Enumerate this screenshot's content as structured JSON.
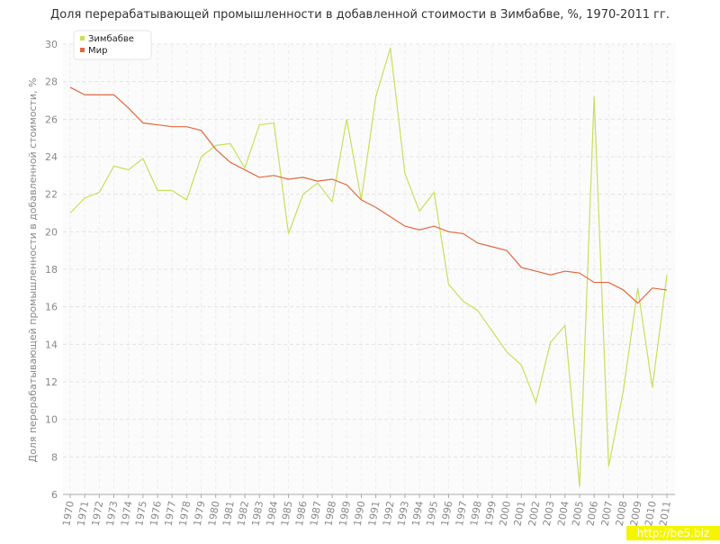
{
  "chart_data": {
    "type": "line",
    "title": "Доля перерабатывающей промышленности в добавленной стоимости в Зимбабве, %, 1970-2011 гг.",
    "y_label": "Доля перерабатывающей промышленности в добавленной стоимости, %",
    "watermark": "http://be5.biz",
    "categories": [
      "1970",
      "1971",
      "1972",
      "1973",
      "1974",
      "1975",
      "1976",
      "1977",
      "1978",
      "1979",
      "1980",
      "1981",
      "1982",
      "1983",
      "1984",
      "1985",
      "1986",
      "1987",
      "1988",
      "1989",
      "1990",
      "1991",
      "1992",
      "1993",
      "1994",
      "1995",
      "1996",
      "1997",
      "1998",
      "1999",
      "2000",
      "2001",
      "2002",
      "2003",
      "2004",
      "2005",
      "2006",
      "2007",
      "2008",
      "2009",
      "2010",
      "2011"
    ],
    "series": [
      {
        "name": "Зимбабве",
        "color": "#c6e05c",
        "values": [
          21.0,
          21.8,
          22.1,
          23.5,
          23.3,
          23.9,
          22.2,
          22.2,
          21.7,
          24.0,
          24.6,
          24.7,
          23.4,
          25.7,
          25.8,
          19.9,
          22.0,
          22.6,
          21.6,
          26.0,
          21.7,
          27.2,
          29.8,
          23.1,
          21.1,
          22.1,
          17.2,
          16.3,
          15.8,
          14.7,
          13.6,
          12.9,
          10.9,
          14.1,
          15.0,
          6.4,
          27.2,
          7.5,
          11.5,
          17.0,
          11.7,
          17.7
        ]
      },
      {
        "name": "Мир",
        "color": "#e0693f",
        "values": [
          27.7,
          27.3,
          27.3,
          27.3,
          26.6,
          25.8,
          25.7,
          25.6,
          25.6,
          25.4,
          24.4,
          23.7,
          23.3,
          22.9,
          23.0,
          22.8,
          22.9,
          22.7,
          22.8,
          22.5,
          21.7,
          21.3,
          20.8,
          20.3,
          20.1,
          20.3,
          20.0,
          19.9,
          19.4,
          19.2,
          19.0,
          18.1,
          17.9,
          17.7,
          17.9,
          17.8,
          17.3,
          17.3,
          16.9,
          16.2,
          17.0,
          16.9
        ]
      }
    ],
    "ylim": [
      6,
      30
    ],
    "yticks": [
      6,
      8,
      10,
      12,
      14,
      16,
      18,
      20,
      22,
      24,
      26,
      28,
      30
    ],
    "grid": true,
    "legend": "top-left"
  }
}
